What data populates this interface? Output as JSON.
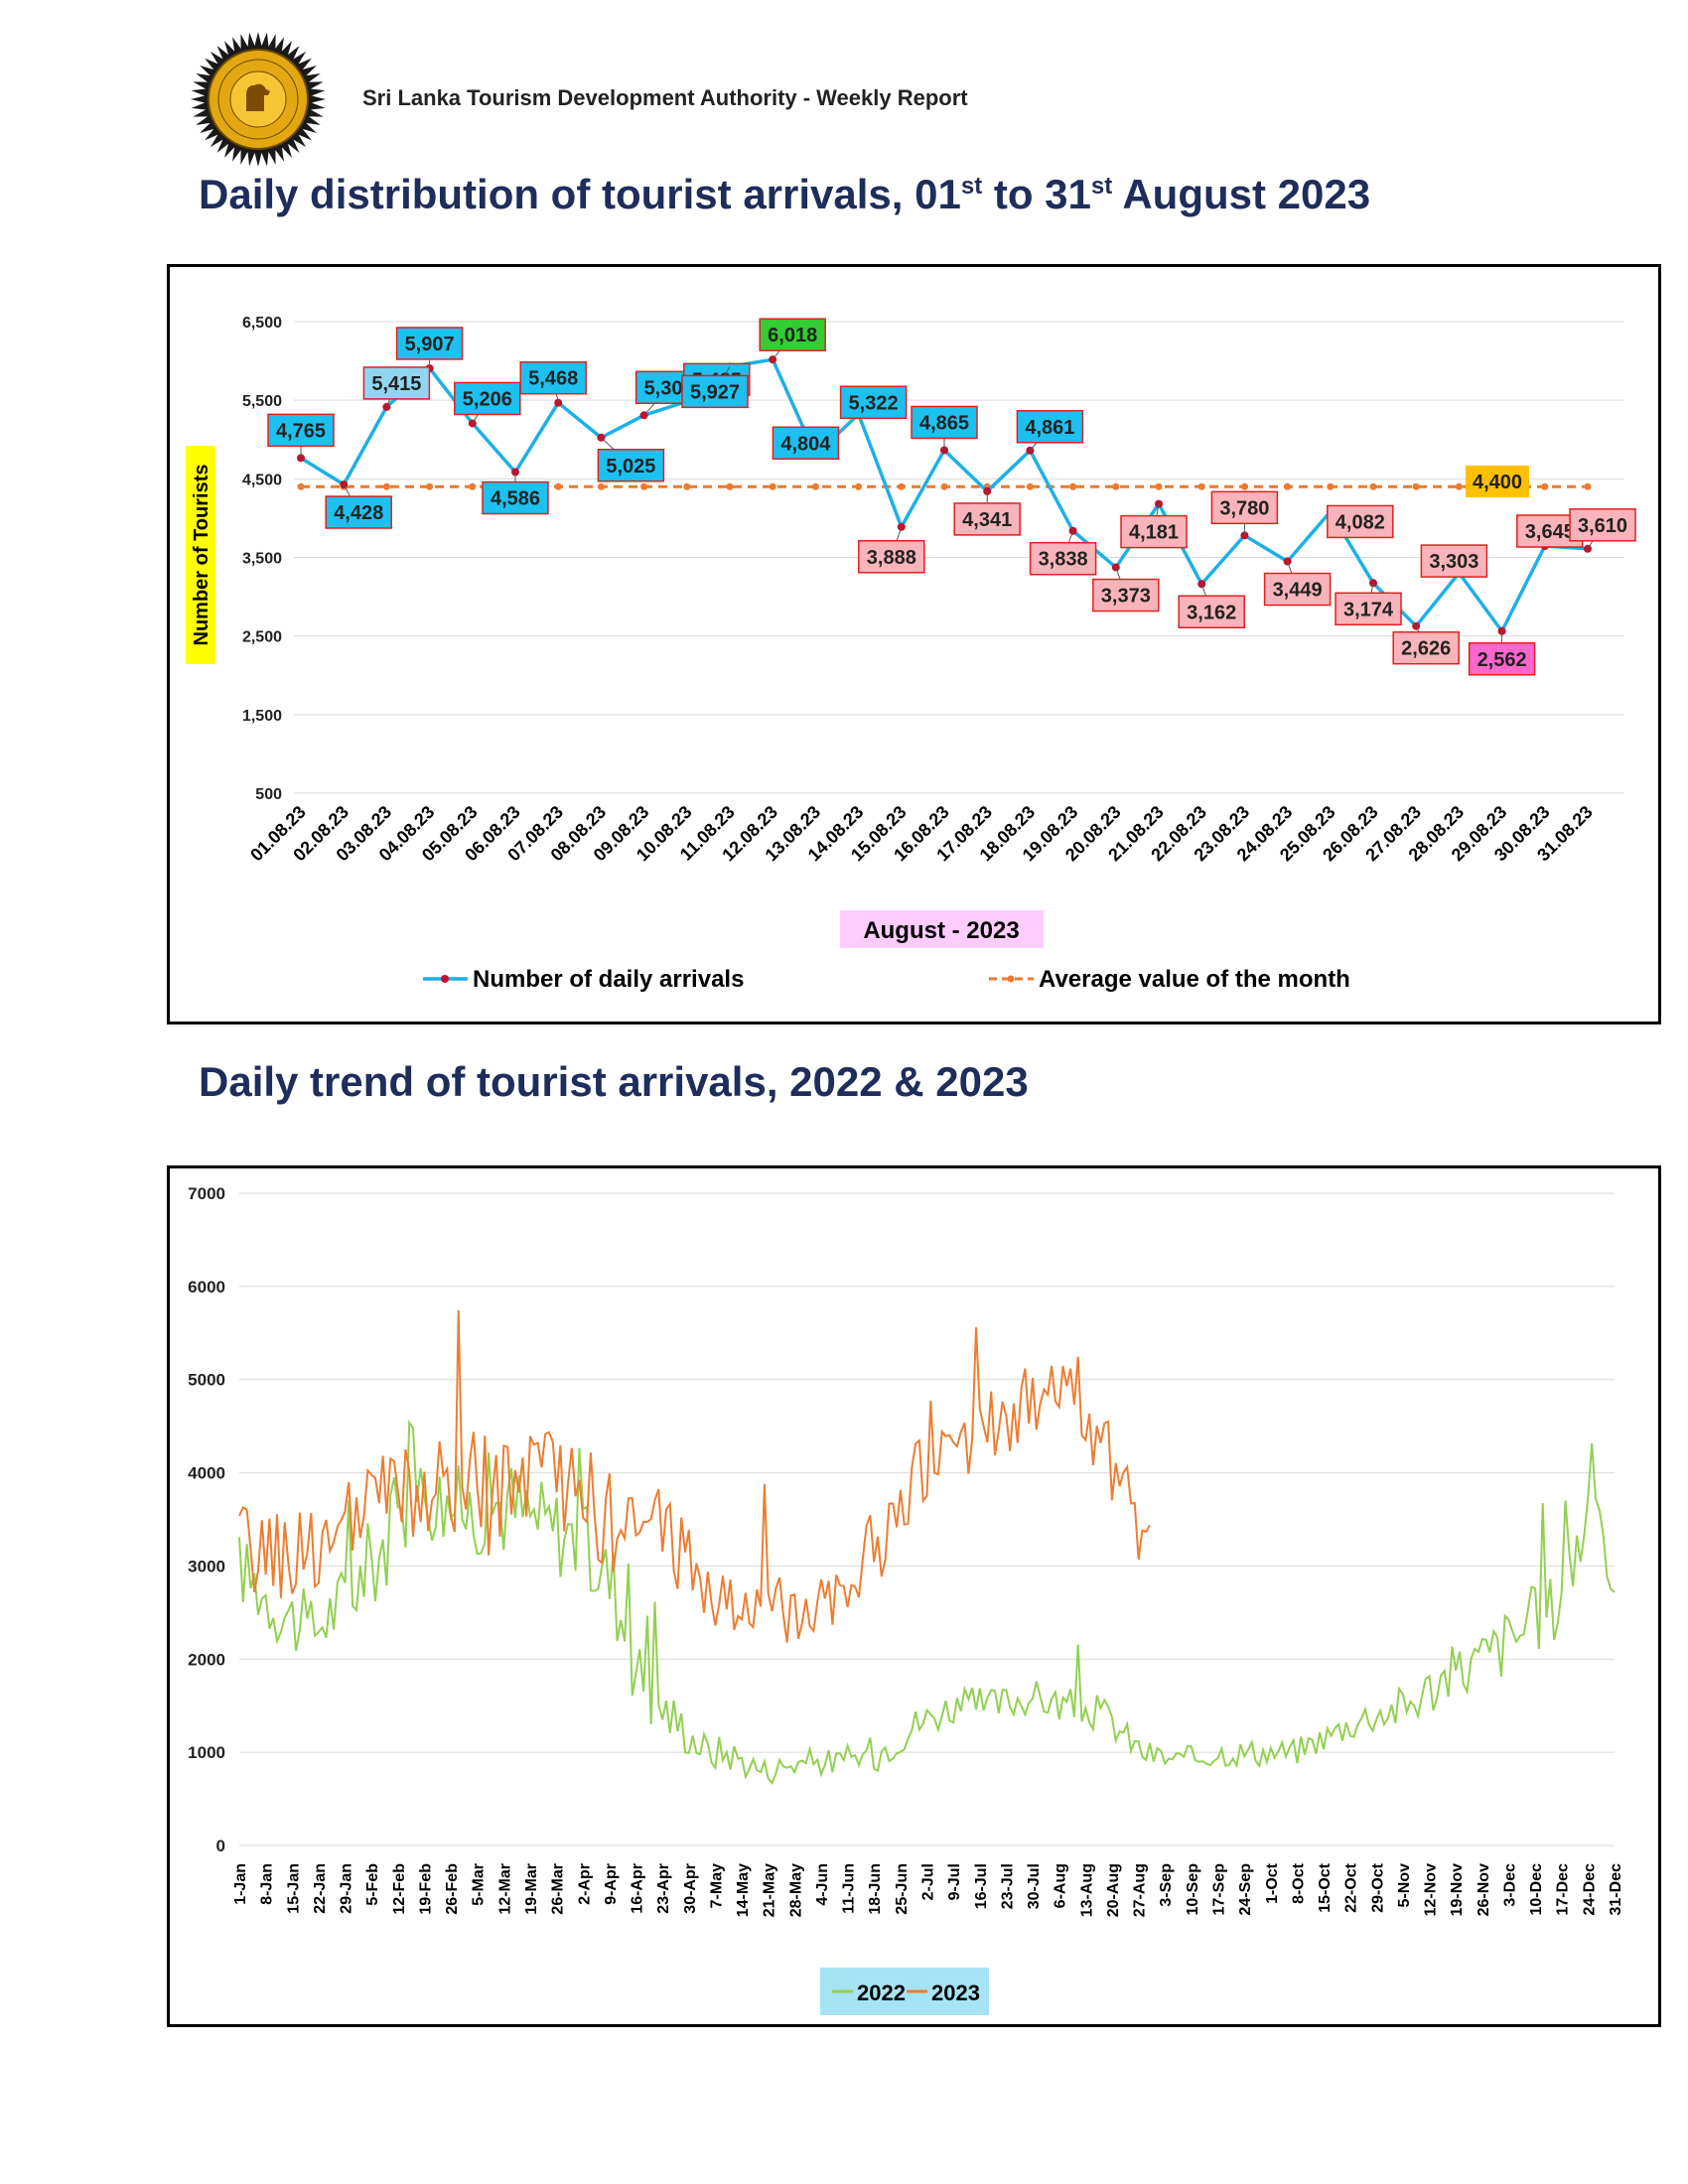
{
  "header": {
    "logo_text": "SRI LANKA TOURISM DEVELOPMENT AUTHORITY",
    "report_title": "Sri Lanka Tourism Development Authority - Weekly Report"
  },
  "chart1_title": {
    "pre": "Daily distribution of tourist arrivals, 01",
    "sup1": "st",
    "mid": " to 31",
    "sup2": "st",
    "post": " August 2023"
  },
  "chart2_title": "Daily trend of tourist arrivals, 2022 & 2023",
  "colors": {
    "title": "#1f2d5c",
    "daily_line": "#1cb0e8",
    "average_line": "#ec7a2f",
    "series_2022": "#92d050",
    "series_2023": "#ed7d31"
  },
  "chart_data": [
    {
      "type": "line",
      "ylabel": "Number of Tourists",
      "xlabel": "August - 2023",
      "yticks": [
        500,
        1500,
        2500,
        3500,
        4500,
        5500,
        6500
      ],
      "ylim": [
        500,
        6500
      ],
      "grid": true,
      "legend_position": "bottom",
      "categories": [
        "01.08.23",
        "02.08.23",
        "03.08.23",
        "04.08.23",
        "05.08.23",
        "06.08.23",
        "07.08.23",
        "08.08.23",
        "09.08.23",
        "10.08.23",
        "11.08.23",
        "12.08.23",
        "13.08.23",
        "14.08.23",
        "15.08.23",
        "16.08.23",
        "17.08.23",
        "18.08.23",
        "19.08.23",
        "20.08.23",
        "21.08.23",
        "22.08.23",
        "23.08.23",
        "24.08.23",
        "25.08.23",
        "26.08.23",
        "27.08.23",
        "28.08.23",
        "29.08.23",
        "30.08.23",
        "31.08.23"
      ],
      "series": [
        {
          "name": "Number of daily arrivals",
          "values": [
            4765,
            4428,
            5415,
            5907,
            5206,
            4586,
            5468,
            5025,
            5309,
            5485,
            5927,
            6018,
            4804,
            5322,
            3888,
            4865,
            4341,
            4861,
            3838,
            3373,
            4181,
            3162,
            3780,
            3449,
            4082,
            3174,
            2626,
            3303,
            2562,
            3645,
            3610
          ]
        },
        {
          "name": "Average value of the month",
          "values": [
            4400,
            4400,
            4400,
            4400,
            4400,
            4400,
            4400,
            4400,
            4400,
            4400,
            4400,
            4400,
            4400,
            4400,
            4400,
            4400,
            4400,
            4400,
            4400,
            4400,
            4400,
            4400,
            4400,
            4400,
            4400,
            4400,
            4400,
            4400,
            4400,
            4400,
            4400
          ]
        }
      ],
      "data_labels": [
        "4,765",
        "4,428",
        "5,415",
        "5,907",
        "5,206",
        "4,586",
        "5,468",
        "5,025",
        "5,309",
        "5,485",
        "5,927",
        "6,018",
        "4,804",
        "5,322",
        "3,888",
        "4,865",
        "4,341",
        "4,861",
        "3,838",
        "3,373",
        "4,181",
        "3,162",
        "3,780",
        "3,449",
        "4,082",
        "3,174",
        "2,626",
        "3,303",
        "2,562",
        "3,645",
        "3,610"
      ],
      "average_label": "4,400"
    },
    {
      "type": "line",
      "ylim": [
        0,
        7000
      ],
      "yticks": [
        0,
        1000,
        2000,
        3000,
        4000,
        5000,
        6000,
        7000
      ],
      "x_tick_labels": [
        "1-Jan",
        "8-Jan",
        "15-Jan",
        "22-Jan",
        "29-Jan",
        "5-Feb",
        "12-Feb",
        "19-Feb",
        "26-Feb",
        "5-Mar",
        "12-Mar",
        "19-Mar",
        "26-Mar",
        "2-Apr",
        "9-Apr",
        "16-Apr",
        "23-Apr",
        "30-Apr",
        "7-May",
        "14-May",
        "21-May",
        "28-May",
        "4-Jun",
        "11-Jun",
        "18-Jun",
        "25-Jun",
        "2-Jul",
        "9-Jul",
        "16-Jul",
        "23-Jul",
        "30-Jul",
        "6-Aug",
        "13-Aug",
        "20-Aug",
        "27-Aug",
        "3-Sep",
        "10-Sep",
        "17-Sep",
        "24-Sep",
        "1-Oct",
        "8-Oct",
        "15-Oct",
        "22-Oct",
        "29-Oct",
        "5-Nov",
        "12-Nov",
        "19-Nov",
        "26-Nov",
        "3-Dec",
        "10-Dec",
        "17-Dec",
        "24-Dec",
        "31-Dec"
      ],
      "legend_position": "bottom",
      "series": [
        {
          "name": "2022",
          "anchors_day_of_year": [
            1,
            10,
            20,
            30,
            40,
            50,
            60,
            70,
            80,
            90,
            100,
            105,
            110,
            115,
            120,
            125,
            130,
            140,
            150,
            160,
            170,
            180,
            190,
            200,
            210,
            220,
            230,
            240,
            250,
            260,
            270,
            280,
            290,
            300,
            310,
            320,
            330,
            340,
            350,
            355,
            360,
            365
          ],
          "anchor_values": [
            3000,
            2600,
            2300,
            2700,
            3300,
            3800,
            3600,
            3700,
            3500,
            3300,
            2800,
            2000,
            1600,
            1400,
            1200,
            1000,
            1000,
            800,
            900,
            900,
            1000,
            1300,
            1500,
            1500,
            1600,
            1500,
            1400,
            1000,
            900,
            1000,
            1000,
            1000,
            1200,
            1400,
            1500,
            1800,
            2000,
            2300,
            2600,
            3200,
            4000,
            2500
          ],
          "oscillation_amplitude": [
            400,
            400,
            400,
            400,
            600,
            500,
            500,
            600,
            500,
            500,
            500,
            400,
            350,
            300,
            250,
            200,
            200,
            150,
            150,
            150,
            200,
            200,
            200,
            200,
            200,
            200,
            200,
            150,
            150,
            150,
            150,
            150,
            150,
            200,
            250,
            300,
            350,
            400,
            400,
            500,
            500,
            300
          ]
        },
        {
          "name": "2023",
          "anchors_day_of_year": [
            1,
            10,
            20,
            30,
            40,
            50,
            60,
            70,
            80,
            90,
            100,
            105,
            110,
            115,
            120,
            125,
            130,
            140,
            150,
            160,
            170,
            180,
            190,
            200,
            210,
            220,
            230,
            240,
            242
          ],
          "anchor_values": [
            3200,
            3100,
            3200,
            3400,
            3800,
            3700,
            3800,
            3800,
            3900,
            3900,
            3400,
            3300,
            3500,
            3300,
            3100,
            2700,
            2600,
            2500,
            2600,
            2800,
            3200,
            3900,
            4200,
            4600,
            4700,
            5200,
            4200,
            3300,
            3600
          ],
          "oscillation_amplitude": [
            500,
            500,
            500,
            500,
            600,
            550,
            700,
            700,
            550,
            550,
            550,
            500,
            600,
            500,
            450,
            400,
            400,
            400,
            400,
            400,
            450,
            450,
            450,
            450,
            450,
            450,
            500,
            350,
            300
          ]
        }
      ]
    }
  ]
}
